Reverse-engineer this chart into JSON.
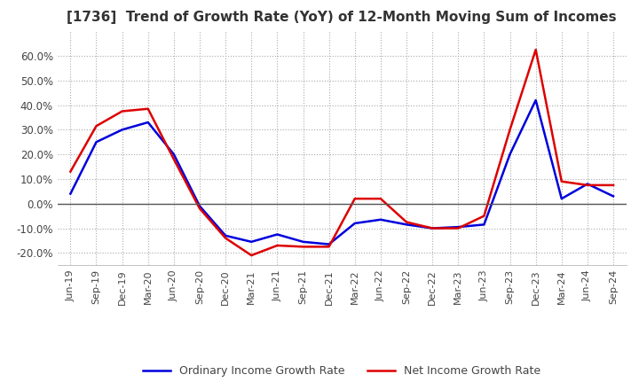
{
  "title": "[1736]  Trend of Growth Rate (YoY) of 12-Month Moving Sum of Incomes",
  "title_fontsize": 11,
  "ylim": [
    -0.25,
    0.7
  ],
  "yticks": [
    -0.2,
    -0.1,
    0.0,
    0.1,
    0.2,
    0.3,
    0.4,
    0.5,
    0.6
  ],
  "background_color": "#ffffff",
  "grid_color": "#aaaaaa",
  "ordinary_color": "#0000dd",
  "net_color": "#dd0000",
  "legend_labels": [
    "Ordinary Income Growth Rate",
    "Net Income Growth Rate"
  ],
  "x_labels": [
    "Jun-19",
    "Sep-19",
    "Dec-19",
    "Mar-20",
    "Jun-20",
    "Sep-20",
    "Dec-20",
    "Mar-21",
    "Jun-21",
    "Sep-21",
    "Dec-21",
    "Mar-22",
    "Jun-22",
    "Sep-22",
    "Dec-22",
    "Mar-23",
    "Jun-23",
    "Sep-23",
    "Dec-23",
    "Mar-24",
    "Jun-24",
    "Sep-24"
  ],
  "ordinary_income": [
    0.04,
    0.25,
    0.3,
    0.33,
    0.2,
    -0.01,
    -0.13,
    -0.155,
    -0.125,
    -0.155,
    -0.165,
    -0.08,
    -0.065,
    -0.085,
    -0.1,
    -0.095,
    -0.085,
    0.2,
    0.42,
    0.02,
    0.08,
    0.03
  ],
  "net_income": [
    0.13,
    0.315,
    0.375,
    0.385,
    0.18,
    -0.02,
    -0.14,
    -0.21,
    -0.17,
    -0.175,
    -0.175,
    0.02,
    0.02,
    -0.075,
    -0.1,
    -0.1,
    -0.05,
    0.3,
    0.625,
    0.09,
    0.075,
    0.075
  ]
}
